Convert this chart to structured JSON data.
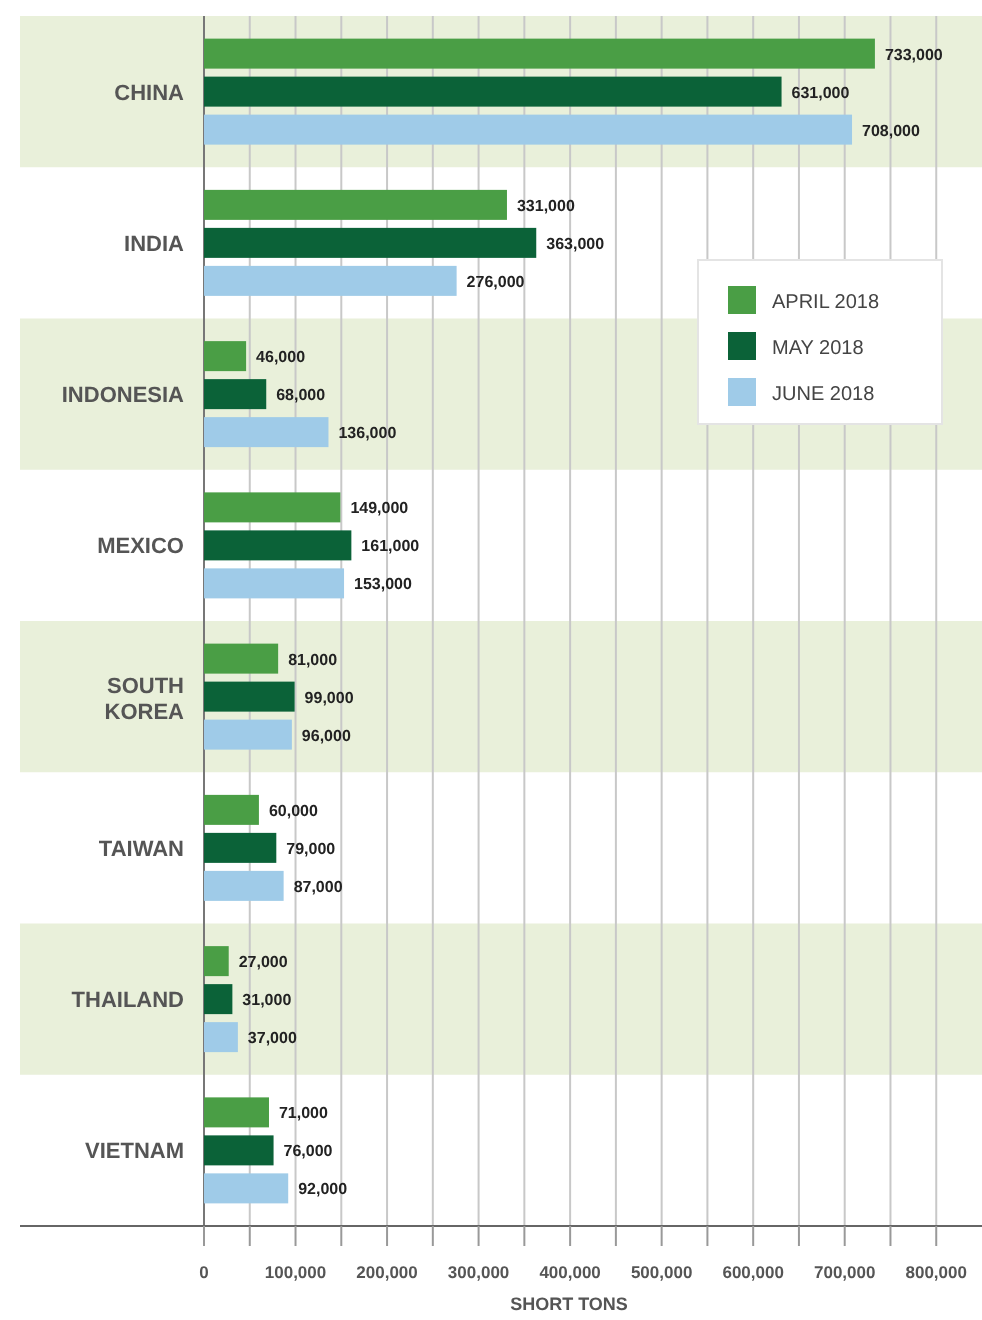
{
  "chart_data": {
    "type": "bar",
    "orientation": "horizontal",
    "xlabel": "SHORT TONS",
    "categories": [
      "CHINA",
      "INDIA",
      "INDONESIA",
      "MEXICO",
      "SOUTH KOREA",
      "TAIWAN",
      "THAILAND",
      "VIETNAM"
    ],
    "series": [
      {
        "name": "APRIL 2018",
        "color": "#4a9e45",
        "values": [
          733000,
          331000,
          46000,
          149000,
          81000,
          60000,
          27000,
          71000
        ],
        "value_labels": [
          "733,000",
          "331,000",
          "46,000",
          "149,000",
          "81,000",
          "60,000",
          "27,000",
          "71,000"
        ]
      },
      {
        "name": "MAY 2018",
        "color": "#0b6238",
        "values": [
          631000,
          363000,
          68000,
          161000,
          99000,
          79000,
          31000,
          76000
        ],
        "value_labels": [
          "631,000",
          "363,000",
          "68,000",
          "161,000",
          "99,000",
          "79,000",
          "31,000",
          "76,000"
        ]
      },
      {
        "name": "JUNE 2018",
        "color": "#9fcbe8",
        "values": [
          708000,
          276000,
          136000,
          153000,
          96000,
          87000,
          37000,
          92000
        ],
        "value_labels": [
          "708,000",
          "276,000",
          "136,000",
          "153,000",
          "96,000",
          "87,000",
          "37,000",
          "92,000"
        ]
      }
    ],
    "xlim": [
      0,
      850000
    ],
    "xticks": [
      {
        "value": 0,
        "label": "0"
      },
      {
        "value": 50000,
        "label": null
      },
      {
        "value": 100000,
        "label": "100,000"
      },
      {
        "value": 150000,
        "label": null
      },
      {
        "value": 200000,
        "label": "200,000"
      },
      {
        "value": 250000,
        "label": null
      },
      {
        "value": 300000,
        "label": "300,000"
      },
      {
        "value": 350000,
        "label": null
      },
      {
        "value": 400000,
        "label": "400,000"
      },
      {
        "value": 450000,
        "label": null
      },
      {
        "value": 500000,
        "label": "500,000"
      },
      {
        "value": 550000,
        "label": null
      },
      {
        "value": 600000,
        "label": "600,000"
      },
      {
        "value": 650000,
        "label": null
      },
      {
        "value": 700000,
        "label": "700,000"
      },
      {
        "value": 750000,
        "label": null
      },
      {
        "value": 800000,
        "label": "800,000"
      }
    ],
    "grid": "x",
    "legend": "right"
  }
}
